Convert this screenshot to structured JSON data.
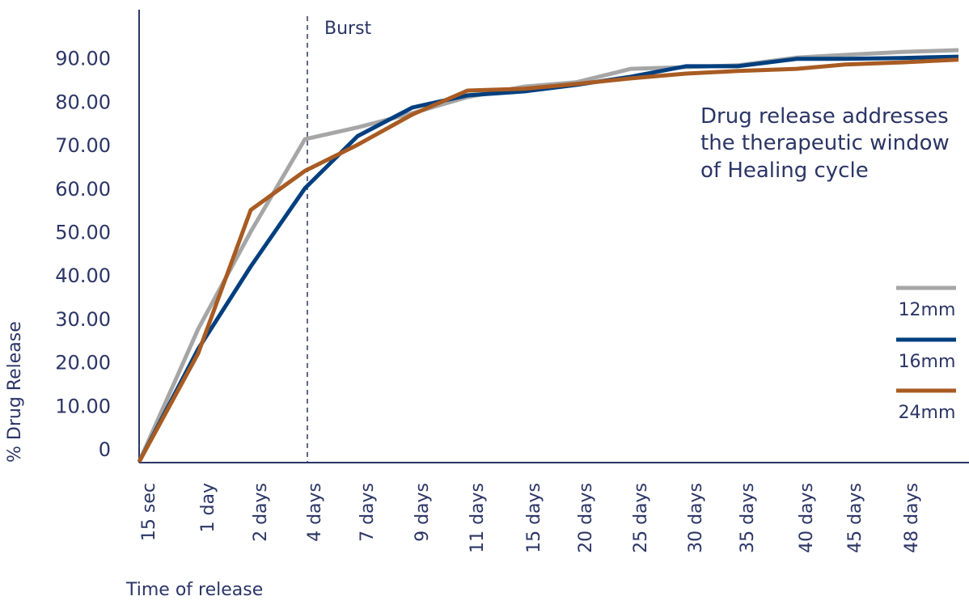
{
  "chart_data": {
    "type": "line",
    "title": "",
    "xlabel": "Time of release",
    "ylabel": "% Drug Release",
    "ylim": [
      -3,
      95
    ],
    "y_ticks": [
      "0",
      "10.00",
      "20.00",
      "30.00",
      "40.00",
      "50.00",
      "60.00",
      "70.00",
      "80.00",
      "90.00"
    ],
    "y_tick_values": [
      0,
      10,
      20,
      30,
      40,
      50,
      60,
      70,
      80,
      90
    ],
    "x": [
      "15 sec",
      "1 day",
      "2 days",
      "4 days",
      "7 days",
      "9 days",
      "11 days",
      "15 days",
      "20 days",
      "25 days",
      "30 days",
      "35 days",
      "40 days",
      "45 days",
      "48 days",
      ""
    ],
    "series": [
      {
        "name": "12mm",
        "color": "#a6a6a6",
        "values": [
          -3,
          27.6,
          50,
          71.3,
          74,
          77.3,
          81,
          83.4,
          84.4,
          87.5,
          87.9,
          88.3,
          90.1,
          90.7,
          91.4,
          91.8
        ]
      },
      {
        "name": "16mm",
        "color": "#003f7f",
        "values": [
          -3,
          23,
          42,
          60,
          72,
          78.6,
          81.4,
          82.3,
          83.8,
          85.7,
          88.1,
          88.1,
          89.8,
          89.8,
          90,
          90.3
        ]
      },
      {
        "name": "24mm",
        "color": "#a85b22",
        "values": [
          -3,
          22,
          55,
          64,
          70,
          77,
          82.5,
          82.9,
          84,
          85.3,
          86.4,
          87,
          87.5,
          88.5,
          89,
          89.6
        ]
      }
    ],
    "annotations": {
      "burst_label": "Burst",
      "burst_at": "4 days",
      "note_lines": [
        "Drug release addresses",
        "the therapeutic window",
        "of Healing cycle"
      ]
    },
    "grid": false,
    "legend_placement": "right"
  }
}
